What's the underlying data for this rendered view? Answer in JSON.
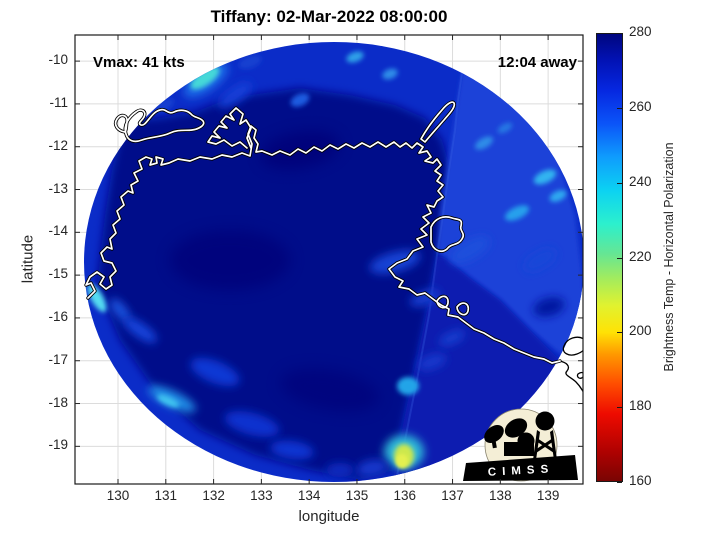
{
  "title": "Tiffany: 02-Mar-2022 08:00:00",
  "annotations": {
    "vmax": "Vmax: 41 kts",
    "time_offset": "12:04 away"
  },
  "axes": {
    "xlabel": "longitude",
    "ylabel": "latitude",
    "x_ticks": [
      130,
      131,
      132,
      133,
      134,
      135,
      136,
      137,
      138,
      139
    ],
    "y_ticks": [
      -10,
      -11,
      -12,
      -13,
      -14,
      -15,
      -16,
      -17,
      -18,
      -19
    ],
    "xlim": [
      129.1,
      139.73
    ],
    "ylim": [
      -19.88,
      -9.39
    ]
  },
  "colorbar": {
    "label": "Brightness Temp - Horizontal Polarization",
    "ticks": [
      160,
      180,
      200,
      220,
      240,
      260,
      280
    ],
    "min": 160,
    "max": 280,
    "gradient": [
      {
        "value": 160,
        "color": "#7a0403"
      },
      {
        "value": 168,
        "color": "#b00201"
      },
      {
        "value": 178,
        "color": "#ee0b00"
      },
      {
        "value": 186,
        "color": "#ff4d00"
      },
      {
        "value": 194,
        "color": "#ff9800"
      },
      {
        "value": 200,
        "color": "#ffe205"
      },
      {
        "value": 207,
        "color": "#e1f22f"
      },
      {
        "value": 214,
        "color": "#a6ec5b"
      },
      {
        "value": 221,
        "color": "#66e693"
      },
      {
        "value": 229,
        "color": "#2cf0cd"
      },
      {
        "value": 238,
        "color": "#0cd2f2"
      },
      {
        "value": 247,
        "color": "#0f9cfd"
      },
      {
        "value": 256,
        "color": "#0b54f8"
      },
      {
        "value": 265,
        "color": "#0627e0"
      },
      {
        "value": 273,
        "color": "#0212b4"
      },
      {
        "value": 280,
        "color": "#00067f"
      }
    ]
  },
  "logo": {
    "text": "CIMSS"
  },
  "colors": {
    "swath_base": "#0b2cc8",
    "deep_region": "#00098a",
    "adjacent_swath": "#1c42d8",
    "southeast_strip": "#0a1cb0",
    "grid": "#dcdcdc",
    "axis": "#262626",
    "coastline": "#ffffff",
    "coastline_outline": "#000000",
    "logo_cream": "#f4eed6"
  },
  "chart_data": {
    "type": "heatmap",
    "title": "Tiffany: 02-Mar-2022 08:00:00",
    "xlabel": "longitude",
    "ylabel": "latitude",
    "xlim": [
      129.1,
      139.73
    ],
    "ylim": [
      -19.88,
      -9.39
    ],
    "x_ticks": [
      130,
      131,
      132,
      133,
      134,
      135,
      136,
      137,
      138,
      139
    ],
    "y_ticks": [
      -10,
      -11,
      -12,
      -13,
      -14,
      -15,
      -16,
      -17,
      -18,
      -19
    ],
    "grid": true,
    "colorbar_label": "Brightness Temp - Horizontal Polarization",
    "value_range_K": [
      160,
      280
    ],
    "colormap": "jet (reversed: red = cold 160 K, dark blue = warm 280 K)",
    "annotations": [
      "Vmax: 41 kts",
      "12:04 away"
    ],
    "swath": {
      "shape": "ellipse",
      "center_lon": 134.5,
      "center_lat": -14.7,
      "radius_lon_deg": 5.2,
      "radius_lat_deg": 5.1
    },
    "features": [
      {
        "name": "warm background, main swath (center/west)",
        "lon": 132.5,
        "lat": -14.5,
        "approx_brightness_temp_K": 278
      },
      {
        "name": "adjacent swath, slightly cooler (northeast sector)",
        "lon": 138.0,
        "lat": -12.5,
        "approx_brightness_temp_K": 263
      },
      {
        "name": "cold convective cell (yellow-green)",
        "lon": 136.0,
        "lat": -19.2,
        "approx_brightness_temp_K": 208
      },
      {
        "name": "cool cloud streak (cyan, northwest)",
        "lon": 131.8,
        "lat": -10.4,
        "approx_brightness_temp_K": 238
      },
      {
        "name": "cool streak on southwest rim",
        "lon": 129.6,
        "lat": -15.5,
        "approx_brightness_temp_K": 240
      },
      {
        "name": "cool arc cluster (south sector)",
        "lon": 131.1,
        "lat": -17.9,
        "approx_brightness_temp_K": 250
      },
      {
        "name": "cool patch in Gulf of Carpentaria",
        "lon": 136.1,
        "lat": -17.6,
        "approx_brightness_temp_K": 248
      },
      {
        "name": "scattered cool patches (northeast)",
        "lon": 138.9,
        "lat": -12.7,
        "approx_brightness_temp_K": 252
      }
    ],
    "map_overlay": "Northern Australia coastline: Melville/Bathurst Islands, Cobourg Peninsula, Arnhem Land, Wessel Islands, Groote Eylandt, Gulf of Carpentaria"
  }
}
